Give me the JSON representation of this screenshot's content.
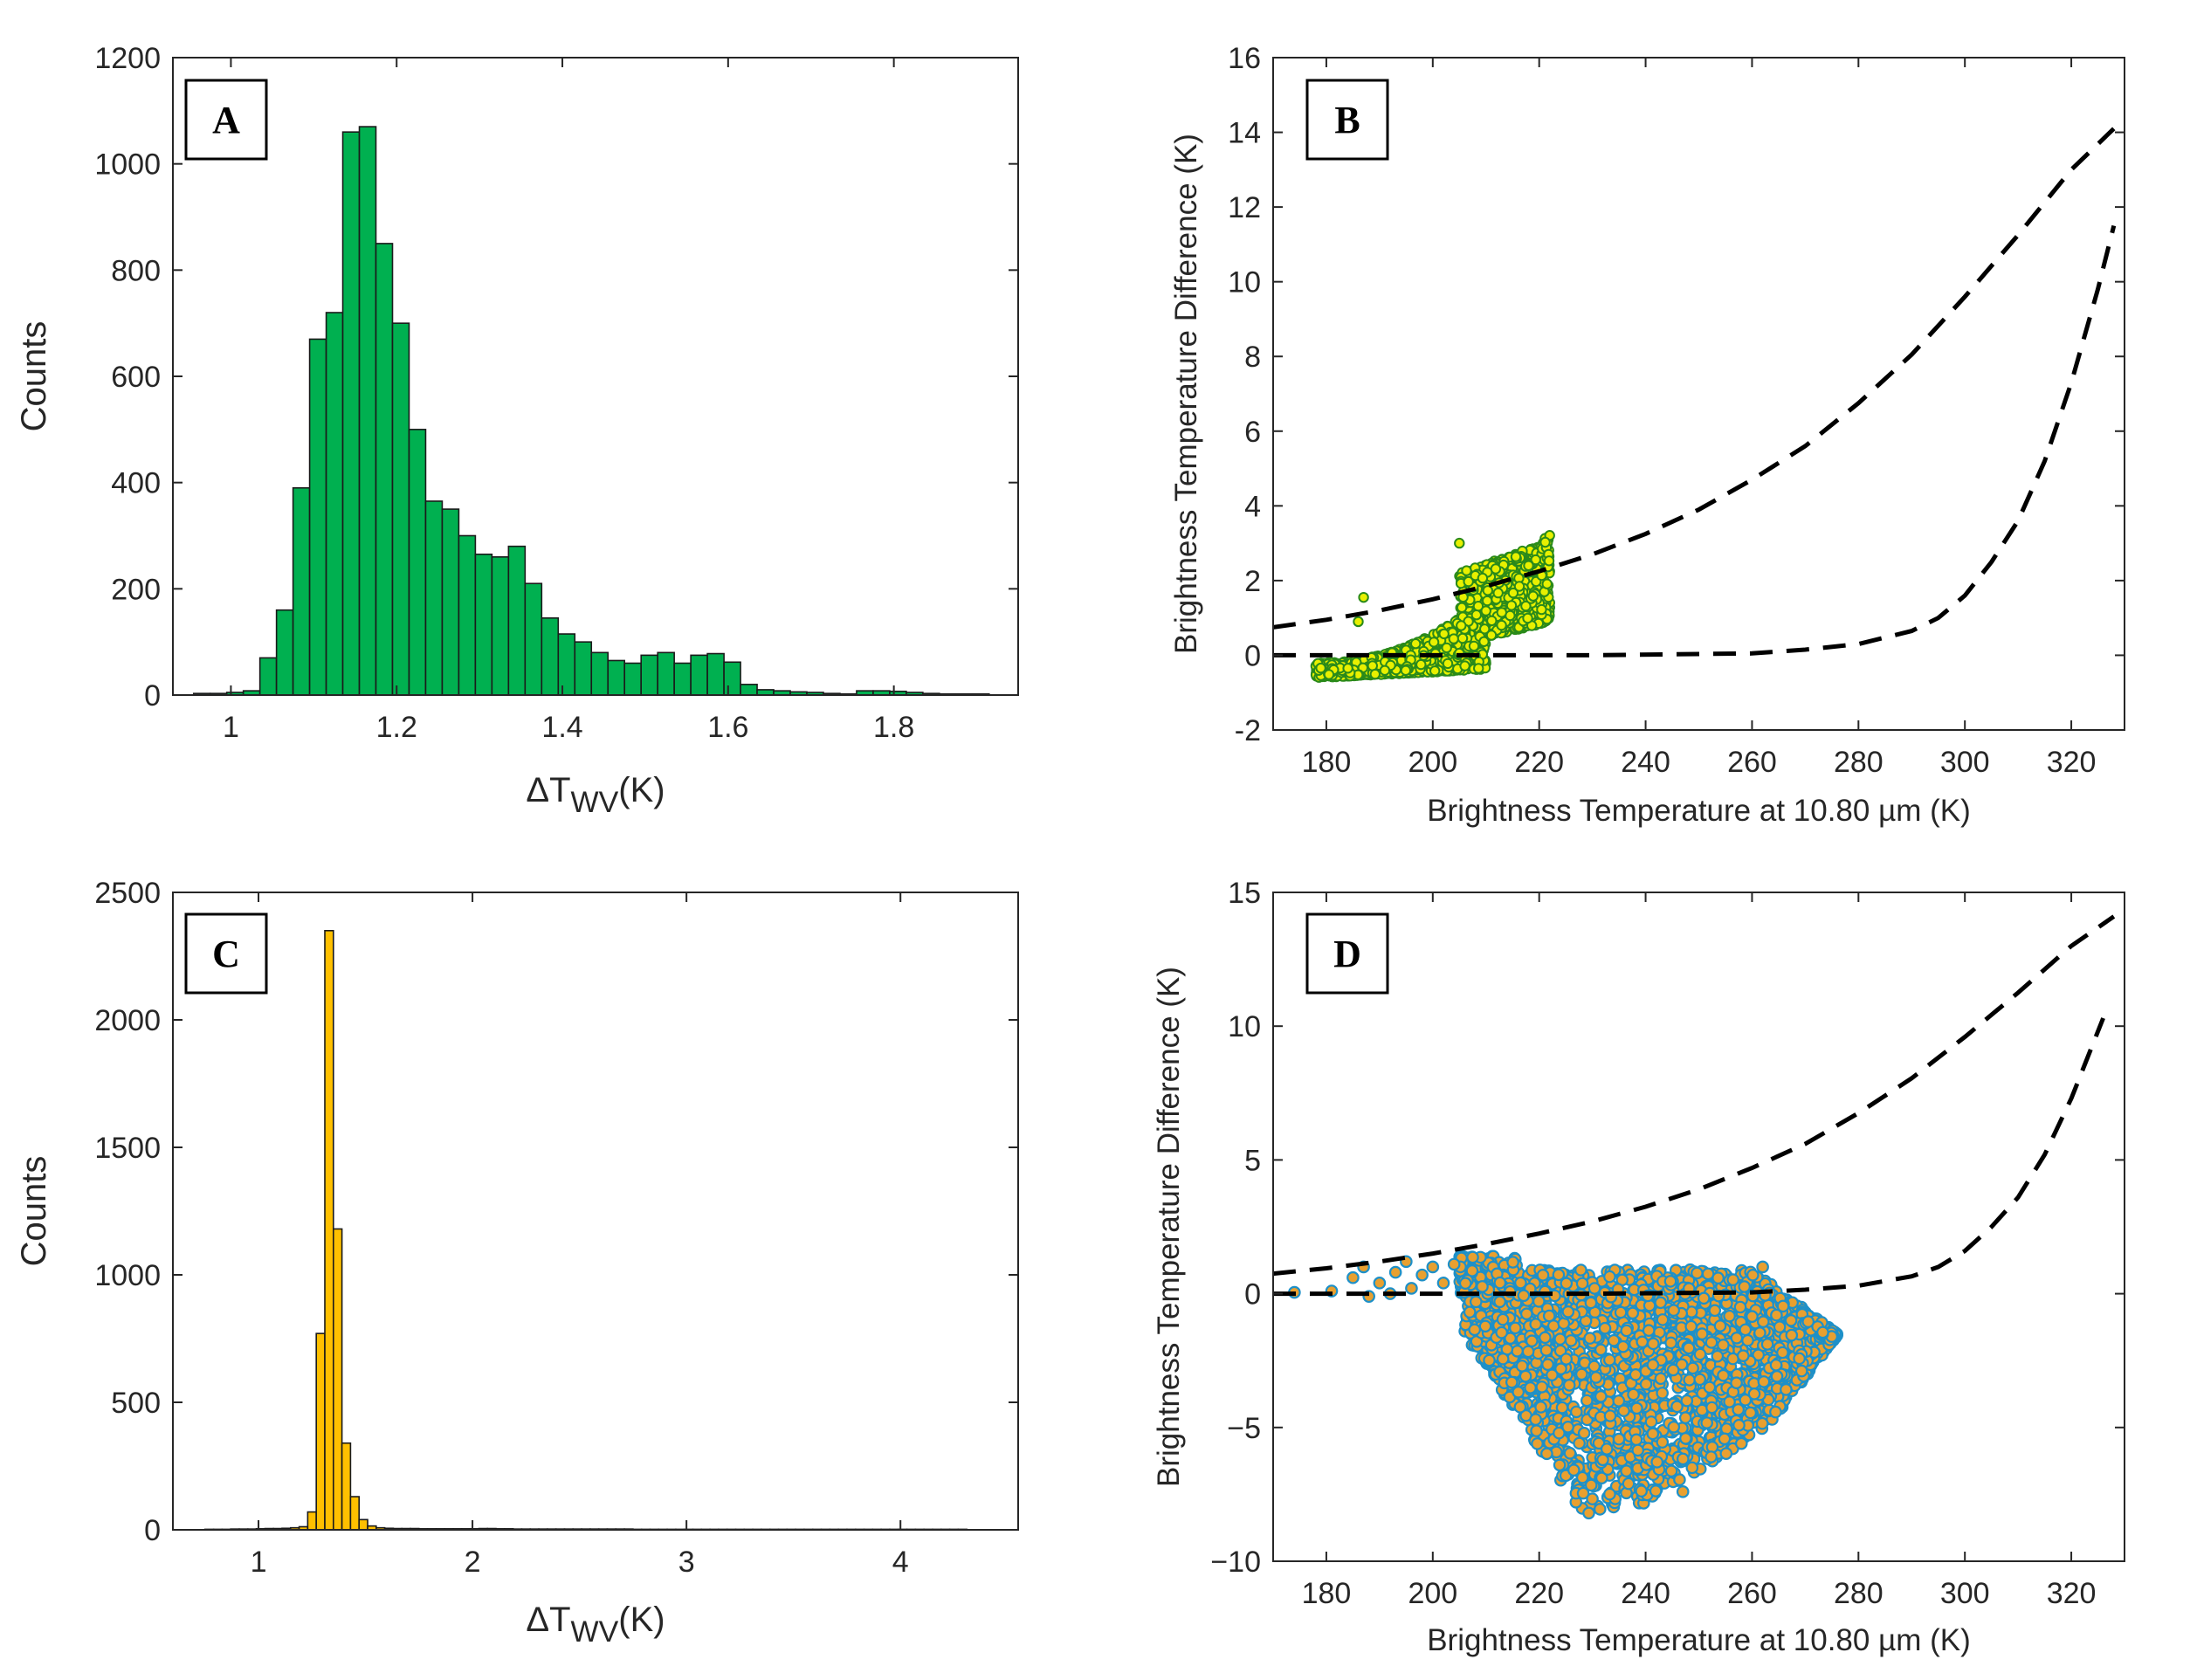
{
  "chart_data": [
    {
      "id": "A",
      "panel_label": "A",
      "type": "bar",
      "subtype": "histogram",
      "xlabel_main": "ΔT",
      "xlabel_sub": "WV",
      "xlabel_unit": "(K)",
      "ylabel": "Counts",
      "xlim": [
        0.93,
        1.95
      ],
      "ylim": [
        0,
        1200
      ],
      "xticks": [
        1,
        1.2,
        1.4,
        1.6,
        1.8
      ],
      "xtick_labels": [
        "1",
        "1.2",
        "1.4",
        "1.6",
        "1.8"
      ],
      "yticks": [
        0,
        200,
        400,
        600,
        800,
        1000,
        1200
      ],
      "ytick_labels": [
        "0",
        "200",
        "400",
        "600",
        "800",
        "1000",
        "1200"
      ],
      "bar_color": "#00b050",
      "bin_start": 0.955,
      "bin_width": 0.02,
      "values": [
        3,
        3,
        5,
        8,
        70,
        160,
        390,
        670,
        720,
        1060,
        1070,
        850,
        700,
        500,
        365,
        350,
        300,
        265,
        260,
        280,
        210,
        145,
        115,
        100,
        80,
        65,
        60,
        75,
        80,
        60,
        75,
        78,
        62,
        20,
        10,
        8,
        6,
        5,
        3,
        2,
        8,
        8,
        7,
        5,
        3,
        2,
        2,
        2
      ]
    },
    {
      "id": "B",
      "panel_label": "B",
      "type": "scatter",
      "xlabel": "Brightness Temperature at 10.80 µm (K)",
      "ylabel": "Brightness Temperature Difference (K)",
      "xlim": [
        170,
        330
      ],
      "ylim": [
        -2,
        16
      ],
      "xticks": [
        180,
        200,
        220,
        240,
        260,
        280,
        300,
        320
      ],
      "xtick_labels": [
        "180",
        "200",
        "220",
        "240",
        "260",
        "280",
        "300",
        "320"
      ],
      "yticks": [
        -2,
        0,
        2,
        4,
        6,
        8,
        10,
        12,
        14,
        16
      ],
      "ytick_labels": [
        "-2",
        "0",
        "2",
        "4",
        "6",
        "8",
        "10",
        "12",
        "14",
        "16"
      ],
      "point_fill": "#e8f000",
      "point_edge": "#2a8a1a",
      "point_cloud": {
        "x_range": [
          178,
          222
        ],
        "y_min": -0.6,
        "y_max_at_x_end": 3.3,
        "count": 2200
      },
      "threshold_curves": [
        {
          "name": "upper threshold",
          "style": "dashed",
          "x": [
            170,
            180,
            190,
            200,
            210,
            220,
            230,
            240,
            250,
            260,
            270,
            280,
            290,
            300,
            310,
            320,
            328
          ],
          "y": [
            0.75,
            0.95,
            1.2,
            1.5,
            1.85,
            2.25,
            2.7,
            3.25,
            3.9,
            4.7,
            5.6,
            6.75,
            8.05,
            9.6,
            11.25,
            13.0,
            14.1
          ]
        },
        {
          "name": "lower threshold",
          "style": "dashed",
          "x": [
            170,
            200,
            230,
            260,
            270,
            280,
            290,
            295,
            300,
            305,
            310,
            315,
            320,
            325,
            328
          ],
          "y": [
            0.0,
            0.0,
            0.0,
            0.05,
            0.15,
            0.3,
            0.65,
            1.0,
            1.6,
            2.5,
            3.6,
            5.2,
            7.3,
            9.8,
            11.5
          ]
        }
      ]
    },
    {
      "id": "C",
      "panel_label": "C",
      "type": "bar",
      "subtype": "histogram",
      "xlabel_main": "ΔT",
      "xlabel_sub": "WV",
      "xlabel_unit": "(K)",
      "ylabel": "Counts",
      "xlim": [
        0.6,
        4.55
      ],
      "ylim": [
        0,
        2500
      ],
      "xticks": [
        1,
        2,
        3,
        4
      ],
      "xtick_labels": [
        "1",
        "2",
        "3",
        "4"
      ],
      "yticks": [
        0,
        500,
        1000,
        1500,
        2000,
        2500
      ],
      "ytick_labels": [
        "0",
        "500",
        "1000",
        "1500",
        "2000",
        "2500"
      ],
      "bar_color": "#ffc000",
      "bin_start": 0.75,
      "bin_width": 0.04,
      "values": [
        2,
        2,
        2,
        3,
        3,
        3,
        4,
        5,
        5,
        6,
        8,
        12,
        70,
        770,
        2350,
        1180,
        340,
        130,
        40,
        15,
        8,
        6,
        5,
        5,
        5,
        4,
        4,
        4,
        4,
        4,
        4,
        4,
        5,
        5,
        4,
        4,
        3,
        3,
        3,
        3,
        3,
        3,
        3,
        3,
        3,
        3,
        3,
        3,
        3,
        3,
        2,
        2,
        2,
        2,
        2,
        2,
        2,
        2,
        2,
        2,
        2,
        2,
        2,
        2,
        2,
        2,
        2,
        2,
        2,
        2,
        2,
        2,
        2,
        2,
        2,
        2,
        2,
        2,
        2,
        2,
        2,
        2,
        2,
        2,
        2,
        2,
        2,
        2,
        2
      ]
    },
    {
      "id": "D",
      "panel_label": "D",
      "type": "scatter",
      "xlabel": "Brightness Temperature at 10.80 µm (K)",
      "ylabel": "Brightness Temperature Difference (K)",
      "xlim": [
        170,
        330
      ],
      "ylim": [
        -10,
        15
      ],
      "xticks": [
        180,
        200,
        220,
        240,
        260,
        280,
        300,
        320
      ],
      "xtick_labels": [
        "180",
        "200",
        "220",
        "240",
        "260",
        "280",
        "300",
        "320"
      ],
      "yticks": [
        -10,
        -5,
        0,
        5,
        10,
        15
      ],
      "ytick_labels": [
        "−10",
        "−5",
        "0",
        "5",
        "10",
        "15"
      ],
      "point_fill": "#e8a030",
      "point_edge": "#1e90c8",
      "point_cloud": {
        "x_range": [
          173,
          276
        ],
        "y_min": -8.3,
        "y_max": 1.4,
        "count": 2600
      },
      "threshold_curves": [
        {
          "name": "upper threshold",
          "style": "dashed",
          "x": [
            170,
            180,
            190,
            200,
            210,
            220,
            230,
            240,
            250,
            260,
            270,
            280,
            290,
            300,
            310,
            320,
            328
          ],
          "y": [
            0.75,
            0.95,
            1.2,
            1.5,
            1.85,
            2.25,
            2.7,
            3.25,
            3.9,
            4.7,
            5.6,
            6.75,
            8.05,
            9.6,
            11.25,
            13.0,
            14.1
          ]
        },
        {
          "name": "lower threshold",
          "style": "dashed",
          "x": [
            170,
            200,
            230,
            260,
            270,
            280,
            290,
            295,
            300,
            305,
            310,
            315,
            320,
            326
          ],
          "y": [
            0.0,
            0.0,
            0.0,
            0.05,
            0.15,
            0.3,
            0.65,
            1.0,
            1.6,
            2.5,
            3.6,
            5.2,
            7.3,
            10.3
          ]
        }
      ]
    }
  ]
}
